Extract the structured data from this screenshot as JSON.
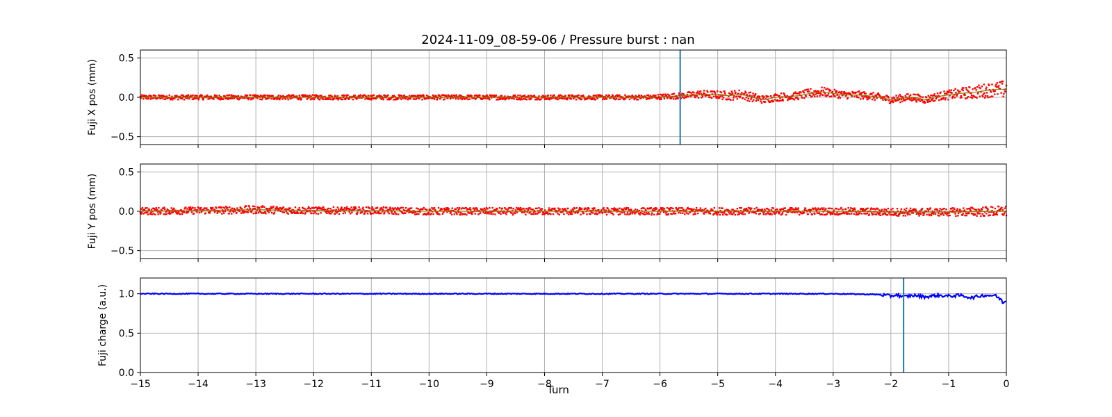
{
  "figure": {
    "title": "2024-11-09_08-59-06 / Pressure burst : nan",
    "xlabel": "Turn"
  },
  "colors": {
    "x_series": "#ff0000",
    "y_series": "#ff0000",
    "charge_series": "#0000ff",
    "trend": "#808000",
    "marker_line": "#1f77b4",
    "grid": "#b0b0b0"
  },
  "chart_data": [
    {
      "type": "scatter",
      "ylabel": "Fuji X pos (mm)",
      "xlim": [
        -15,
        0
      ],
      "ylim": [
        -0.6,
        0.6
      ],
      "xticks": [
        -15,
        -14,
        -13,
        -12,
        -11,
        -10,
        -9,
        -8,
        -7,
        -6,
        -5,
        -4,
        -3,
        -2,
        -1,
        0
      ],
      "yticks": [
        -0.5,
        0.0,
        0.5
      ],
      "ytick_labels": [
        "−0.5",
        "0.0",
        "0.5"
      ],
      "grid": true,
      "marker_x": -5.65,
      "series": [
        {
          "points_x": [
            -15,
            -14,
            -13,
            -12,
            -11,
            -10,
            -9,
            -8,
            -7,
            -6.2,
            -5.9,
            -5.6,
            -5.3,
            -5.0,
            -4.8,
            -4.6,
            -4.4,
            -4.2,
            -4.0,
            -3.8,
            -3.6,
            -3.4,
            -3.2,
            -3.0,
            -2.8,
            -2.6,
            -2.4,
            -2.2,
            -2.0,
            -1.8,
            -1.6,
            -1.4,
            -1.2,
            -1.0,
            -0.8,
            -0.6,
            -0.4,
            -0.2,
            0
          ],
          "center": [
            0.0,
            0.0,
            0.0,
            0.0,
            0.0,
            0.0,
            0.0,
            0.0,
            0.0,
            0.0,
            0.01,
            0.02,
            0.04,
            0.03,
            0.02,
            0.04,
            0.0,
            -0.03,
            0.0,
            0.01,
            0.02,
            0.05,
            0.07,
            0.05,
            0.03,
            0.03,
            0.02,
            0.0,
            -0.03,
            -0.01,
            0.0,
            -0.03,
            0.01,
            0.03,
            0.05,
            0.06,
            0.08,
            0.1,
            0.1
          ],
          "spread": [
            0.03,
            0.03,
            0.03,
            0.03,
            0.03,
            0.03,
            0.03,
            0.03,
            0.03,
            0.03,
            0.035,
            0.04,
            0.05,
            0.05,
            0.06,
            0.06,
            0.06,
            0.05,
            0.05,
            0.05,
            0.05,
            0.06,
            0.06,
            0.05,
            0.05,
            0.05,
            0.05,
            0.05,
            0.05,
            0.05,
            0.05,
            0.05,
            0.05,
            0.06,
            0.07,
            0.08,
            0.09,
            0.09,
            0.12
          ]
        }
      ]
    },
    {
      "type": "scatter",
      "ylabel": "Fuji Y pos (mm)",
      "xlim": [
        -15,
        0
      ],
      "ylim": [
        -0.6,
        0.6
      ],
      "xticks": [
        -15,
        -14,
        -13,
        -12,
        -11,
        -10,
        -9,
        -8,
        -7,
        -6,
        -5,
        -4,
        -3,
        -2,
        -1,
        0
      ],
      "yticks": [
        -0.5,
        0.0,
        0.5
      ],
      "ytick_labels": [
        "−0.5",
        "0.0",
        "0.5"
      ],
      "grid": true,
      "series": [
        {
          "points_x": [
            -15,
            -14,
            -13,
            -12,
            -11,
            -10,
            -9,
            -8,
            -7,
            -6,
            -5,
            -4,
            -3,
            -2,
            -1,
            0
          ],
          "center": [
            0.0,
            0.01,
            0.02,
            0.01,
            0.01,
            0.0,
            0.0,
            0.0,
            0.0,
            0.0,
            0.0,
            0.0,
            0.0,
            -0.01,
            -0.01,
            0.0
          ],
          "spread": [
            0.045,
            0.045,
            0.05,
            0.045,
            0.045,
            0.045,
            0.045,
            0.045,
            0.045,
            0.045,
            0.045,
            0.045,
            0.045,
            0.05,
            0.05,
            0.07
          ]
        }
      ]
    },
    {
      "type": "line",
      "ylabel": "Fuji charge (a.u.)",
      "xlim": [
        -15,
        0
      ],
      "ylim": [
        0.0,
        1.2
      ],
      "xticks": [
        -15,
        -14,
        -13,
        -12,
        -11,
        -10,
        -9,
        -8,
        -7,
        -6,
        -5,
        -4,
        -3,
        -2,
        -1,
        0
      ],
      "xtick_labels": [
        "−15",
        "−14",
        "−13",
        "−12",
        "−11",
        "−10",
        "−9",
        "−8",
        "−7",
        "−6",
        "−5",
        "−4",
        "−3",
        "−2",
        "−1",
        "0"
      ],
      "yticks": [
        0.0,
        0.5,
        1.0
      ],
      "ytick_labels": [
        "0.0",
        "0.5",
        "1.0"
      ],
      "grid": true,
      "marker_x": -1.78,
      "series": [
        {
          "x": [
            -15,
            -14,
            -13,
            -12,
            -11,
            -10,
            -9,
            -8,
            -7,
            -6,
            -5,
            -4,
            -3,
            -2.2,
            -2.0,
            -1.9,
            -1.8,
            -1.6,
            -1.4,
            -1.2,
            -1.0,
            -0.8,
            -0.6,
            -0.4,
            -0.2,
            -0.1,
            -0.05,
            0
          ],
          "y": [
            1.0,
            1.0,
            1.0,
            1.0,
            1.0,
            1.0,
            1.0,
            1.0,
            1.0,
            1.0,
            1.0,
            1.0,
            1.0,
            0.99,
            0.97,
            0.99,
            0.96,
            0.98,
            0.96,
            0.98,
            0.97,
            0.98,
            0.95,
            0.98,
            0.98,
            0.93,
            0.88,
            0.92
          ]
        }
      ]
    }
  ]
}
